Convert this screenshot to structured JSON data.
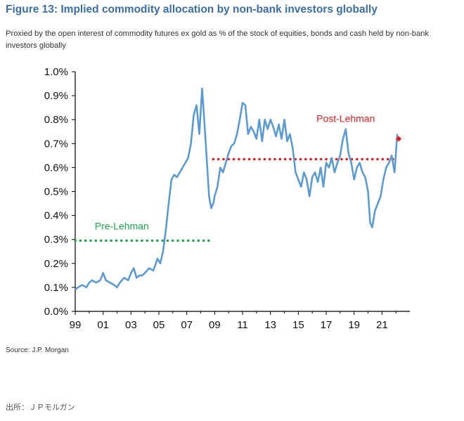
{
  "title": "Figure 13: Implied commodity allocation by non-bank investors globally",
  "subtitle": "Proxied by the open interest of commodity futures ex gold as % of the stock of equities, bonds and cash held by non-bank investors globally",
  "source": "Source: J.P. Morgan",
  "footer": "出所：ＪＰモルガン",
  "colors": {
    "title": "#3a6ea8",
    "line": "#5b9bd5",
    "pre": "#1aa84a",
    "post": "#e8191f"
  },
  "chart_data": {
    "type": "line",
    "x_ticks": [
      "99",
      "01",
      "03",
      "05",
      "07",
      "09",
      "11",
      "13",
      "15",
      "17",
      "19",
      "21"
    ],
    "x_tick_values": [
      1999,
      2001,
      2003,
      2005,
      2007,
      2009,
      2011,
      2013,
      2015,
      2017,
      2019,
      2021
    ],
    "xlim": [
      1999,
      2023
    ],
    "y_ticks": [
      "0.0%",
      "0.1%",
      "0.2%",
      "0.3%",
      "0.4%",
      "0.5%",
      "0.6%",
      "0.7%",
      "0.8%",
      "0.9%",
      "1.0%"
    ],
    "y_tick_values": [
      0.0,
      0.1,
      0.2,
      0.3,
      0.4,
      0.5,
      0.6,
      0.7,
      0.8,
      0.9,
      1.0
    ],
    "ylim": [
      0.0,
      1.0
    ],
    "grid": false,
    "series": [
      {
        "type": "line",
        "x": [
          1999.0,
          1999.2,
          1999.5,
          1999.8,
          2000.0,
          2000.2,
          2000.5,
          2000.8,
          2001.0,
          2001.2,
          2001.5,
          2001.8,
          2002.0,
          2002.2,
          2002.5,
          2002.8,
          2003.0,
          2003.2,
          2003.4,
          2003.6,
          2003.8,
          2004.0,
          2004.3,
          2004.6,
          2004.9,
          2005.1,
          2005.3,
          2005.5,
          2005.7,
          2005.9,
          2006.1,
          2006.3,
          2006.5,
          2006.7,
          2006.9,
          2007.1,
          2007.3,
          2007.5,
          2007.7,
          2007.9,
          2008.1,
          2008.3,
          2008.45,
          2008.6,
          2008.75,
          2008.9,
          2009.0,
          2009.2,
          2009.4,
          2009.6,
          2009.8,
          2010.0,
          2010.2,
          2010.4,
          2010.6,
          2010.8,
          2011.0,
          2011.2,
          2011.4,
          2011.6,
          2011.8,
          2012.0,
          2012.2,
          2012.4,
          2012.6,
          2012.8,
          2013.0,
          2013.2,
          2013.4,
          2013.6,
          2013.8,
          2014.0,
          2014.2,
          2014.4,
          2014.6,
          2014.8,
          2015.0,
          2015.2,
          2015.4,
          2015.6,
          2015.8,
          2016.0,
          2016.2,
          2016.4,
          2016.6,
          2016.8,
          2017.0,
          2017.2,
          2017.4,
          2017.6,
          2017.8,
          2018.0,
          2018.2,
          2018.4,
          2018.6,
          2018.8,
          2019.0,
          2019.2,
          2019.4,
          2019.6,
          2019.8,
          2020.0,
          2020.15,
          2020.3,
          2020.5,
          2020.7,
          2020.9,
          2021.1,
          2021.3,
          2021.5,
          2021.7,
          2021.9,
          2022.1
        ],
        "y": [
          0.09,
          0.1,
          0.11,
          0.1,
          0.12,
          0.13,
          0.12,
          0.13,
          0.16,
          0.13,
          0.12,
          0.11,
          0.1,
          0.12,
          0.14,
          0.13,
          0.16,
          0.18,
          0.14,
          0.15,
          0.15,
          0.16,
          0.18,
          0.17,
          0.22,
          0.2,
          0.25,
          0.34,
          0.45,
          0.55,
          0.57,
          0.56,
          0.58,
          0.6,
          0.62,
          0.64,
          0.7,
          0.82,
          0.86,
          0.74,
          0.93,
          0.76,
          0.62,
          0.48,
          0.43,
          0.45,
          0.48,
          0.52,
          0.6,
          0.58,
          0.62,
          0.66,
          0.69,
          0.7,
          0.74,
          0.8,
          0.87,
          0.86,
          0.74,
          0.77,
          0.75,
          0.72,
          0.8,
          0.71,
          0.8,
          0.76,
          0.8,
          0.77,
          0.73,
          0.78,
          0.72,
          0.8,
          0.71,
          0.74,
          0.68,
          0.58,
          0.55,
          0.52,
          0.58,
          0.55,
          0.48,
          0.56,
          0.58,
          0.54,
          0.6,
          0.52,
          0.62,
          0.6,
          0.64,
          0.58,
          0.62,
          0.65,
          0.72,
          0.76,
          0.66,
          0.62,
          0.55,
          0.6,
          0.62,
          0.58,
          0.56,
          0.5,
          0.37,
          0.35,
          0.42,
          0.45,
          0.48,
          0.55,
          0.6,
          0.62,
          0.65,
          0.58,
          0.74
        ]
      }
    ],
    "end_marker": {
      "x": 2022.2,
      "y": 0.72
    },
    "reference_lines": [
      {
        "label": "Pre-Lehman",
        "y": 0.295,
        "x_start": 1999.0,
        "x_end": 2008.9,
        "style": "dotted"
      },
      {
        "label": "Post-Lehman",
        "y": 0.635,
        "x_start": 2008.9,
        "x_end": 2022.0,
        "style": "dotted"
      }
    ]
  }
}
